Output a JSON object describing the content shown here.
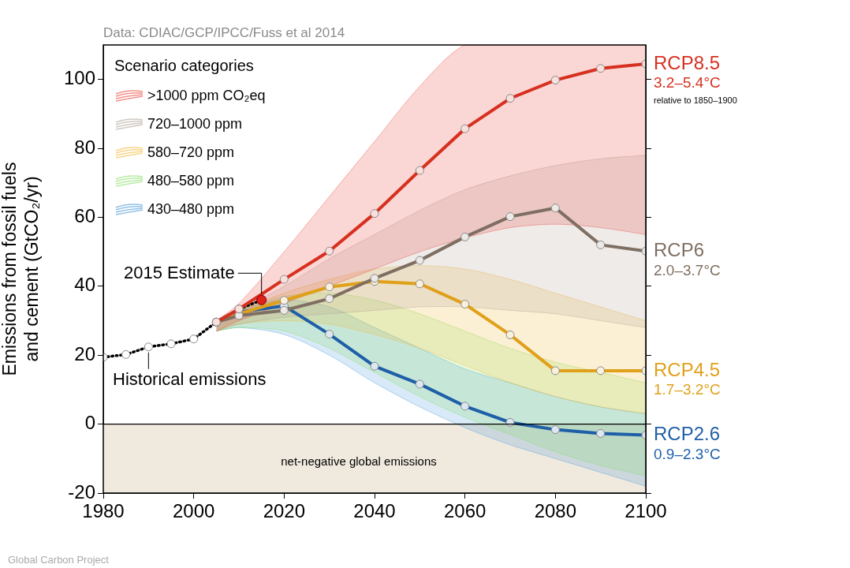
{
  "chart_data": {
    "type": "line",
    "source": "Data: CDIAC/GCP/IPCC/Fuss et al 2014",
    "credit": "Global Carbon Project",
    "y_label": [
      "Emissions from fossil fuels",
      "and cement (GtCO₂/yr)"
    ],
    "x": [
      1980,
      1985,
      1990,
      1995,
      2000,
      2005,
      2010,
      2015,
      2020,
      2025,
      2030,
      2035,
      2040,
      2045,
      2050,
      2055,
      2060,
      2065,
      2070,
      2075,
      2080,
      2085,
      2090,
      2095,
      2100
    ],
    "xlim": [
      1980,
      2100
    ],
    "xticks": [
      1980,
      2000,
      2020,
      2040,
      2060,
      2080,
      2100
    ],
    "ylim": [
      -20,
      110
    ],
    "yticks": [
      -20,
      0,
      20,
      40,
      60,
      80,
      100
    ],
    "grid": false,
    "legend": "upper left",
    "legend_title": "Scenario categories",
    "scenario_categories": [
      {
        "name": ">1000 ppm CO₂eq",
        "color": "#e8392e",
        "low": [
          null,
          null,
          null,
          null,
          null,
          27,
          30,
          null,
          35,
          null,
          40,
          null,
          45,
          null,
          50,
          null,
          54,
          null,
          57,
          null,
          58,
          null,
          57,
          null,
          55
        ],
        "high": [
          null,
          null,
          null,
          null,
          null,
          30,
          35,
          null,
          50,
          null,
          66,
          null,
          82,
          null,
          98,
          null,
          110,
          null,
          110,
          null,
          110,
          null,
          110,
          null,
          110
        ]
      },
      {
        "name": "720–1000 ppm",
        "color": "#a89b8f",
        "low": [
          null,
          null,
          null,
          null,
          null,
          27,
          29,
          null,
          31,
          null,
          32,
          null,
          33,
          null,
          34,
          null,
          34,
          null,
          33,
          null,
          32,
          null,
          30,
          null,
          28
        ],
        "high": [
          null,
          null,
          null,
          null,
          null,
          30,
          33,
          null,
          40,
          null,
          48,
          null,
          55,
          null,
          62,
          null,
          68,
          null,
          72,
          null,
          75,
          null,
          77,
          null,
          78
        ]
      },
      {
        "name": "580–720 ppm",
        "color": "#f0b429",
        "low": [
          null,
          null,
          null,
          null,
          null,
          27,
          29,
          null,
          30,
          null,
          29,
          null,
          26,
          null,
          22,
          null,
          17,
          null,
          12,
          null,
          8,
          null,
          5,
          null,
          3
        ],
        "high": [
          null,
          null,
          null,
          null,
          null,
          30,
          33,
          null,
          38,
          null,
          42,
          null,
          45,
          null,
          46,
          null,
          45,
          null,
          42,
          null,
          38,
          null,
          34,
          null,
          30
        ]
      },
      {
        "name": "480–580 ppm",
        "color": "#7ddc5a",
        "low": [
          null,
          null,
          null,
          null,
          null,
          27,
          28,
          null,
          27,
          null,
          22,
          null,
          15,
          null,
          8,
          null,
          2,
          null,
          -3,
          null,
          -8,
          null,
          -12,
          null,
          -15
        ],
        "high": [
          null,
          null,
          null,
          null,
          null,
          30,
          33,
          null,
          37,
          null,
          38,
          null,
          36,
          null,
          32,
          null,
          27,
          null,
          22,
          null,
          18,
          null,
          15,
          null,
          12
        ]
      },
      {
        "name": "430–480 ppm",
        "color": "#3a8fd6",
        "low": [
          null,
          null,
          null,
          null,
          null,
          27,
          28,
          null,
          26,
          null,
          20,
          null,
          12,
          null,
          5,
          null,
          -1,
          null,
          -6,
          null,
          -10,
          null,
          -14,
          null,
          -18
        ],
        "high": [
          null,
          null,
          null,
          null,
          null,
          30,
          33,
          null,
          36,
          null,
          34,
          null,
          28,
          null,
          22,
          null,
          16,
          null,
          12,
          null,
          8,
          null,
          5,
          null,
          3
        ]
      }
    ],
    "series": [
      {
        "name": "Historical emissions",
        "color": "#000000",
        "marker": "circle",
        "line_style": "dotted",
        "values": [
          19.4,
          20.2,
          22.4,
          23.3,
          24.7,
          29.6,
          33.4,
          36.0,
          null,
          null,
          null,
          null,
          null,
          null,
          null,
          null,
          null,
          null,
          null,
          null,
          null,
          null,
          null,
          null,
          null
        ]
      },
      {
        "name": "2015 Estimate",
        "color": "#e0201b",
        "marker": "circle",
        "line_style": "none",
        "values": [
          null,
          null,
          null,
          null,
          null,
          null,
          null,
          36.0,
          null,
          null,
          null,
          null,
          null,
          null,
          null,
          null,
          null,
          null,
          null,
          null,
          null,
          null,
          null,
          null,
          null
        ]
      },
      {
        "name": "RCP8.5",
        "color": "#d7301f",
        "marker": "circle",
        "line_style": "solid",
        "temperature": "3.2–5.4°C",
        "note": "relative to 1850–1900",
        "values": [
          null,
          null,
          null,
          null,
          null,
          29.6,
          33.4,
          null,
          42.0,
          null,
          50.2,
          null,
          61.1,
          null,
          73.6,
          null,
          85.7,
          null,
          94.5,
          null,
          99.8,
          null,
          103.2,
          null,
          104.5
        ]
      },
      {
        "name": "RCP6",
        "color": "#7f6f62",
        "marker": "circle",
        "line_style": "solid",
        "temperature": "2.0–3.7°C",
        "values": [
          null,
          null,
          null,
          null,
          null,
          29.6,
          31.5,
          null,
          33.0,
          null,
          36.4,
          null,
          42.3,
          null,
          47.5,
          null,
          54.3,
          null,
          60.2,
          null,
          62.7,
          null,
          52.0,
          null,
          50.2
        ]
      },
      {
        "name": "RCP4.5",
        "color": "#e0a01a",
        "marker": "circle",
        "line_style": "solid",
        "temperature": "1.7–3.2°C",
        "values": [
          null,
          null,
          null,
          null,
          null,
          29.6,
          32.0,
          null,
          35.9,
          null,
          39.8,
          null,
          41.4,
          null,
          40.7,
          null,
          34.8,
          null,
          25.9,
          null,
          15.5,
          null,
          15.5,
          null,
          15.5
        ]
      },
      {
        "name": "RCP2.6",
        "color": "#1f5fa8",
        "marker": "circle",
        "line_style": "solid",
        "temperature": "0.9–2.3°C",
        "values": [
          null,
          null,
          null,
          null,
          null,
          29.6,
          32.5,
          null,
          34.3,
          null,
          26.1,
          null,
          16.8,
          null,
          11.6,
          null,
          5.2,
          null,
          0.5,
          null,
          -1.6,
          null,
          -2.7,
          null,
          -3.2
        ]
      }
    ],
    "annotations": [
      {
        "text": "net-negative global emissions",
        "below": 0
      }
    ]
  }
}
